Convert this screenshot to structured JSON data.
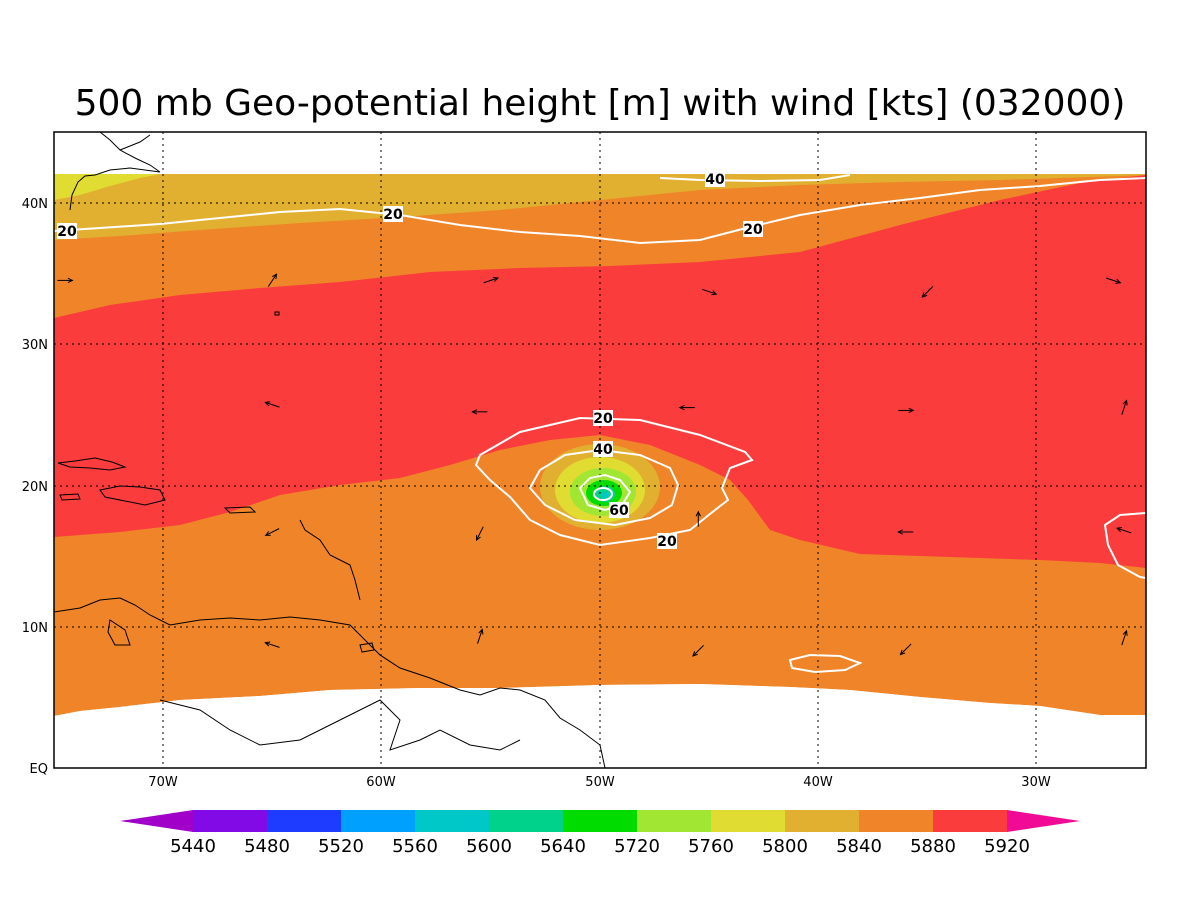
{
  "title": "500 mb Geo-potential height [m] with wind [kts] (032000)",
  "axes": {
    "lon_ticks": [
      "70W",
      "60W",
      "50W",
      "40W",
      "30W"
    ],
    "lat_ticks": [
      "EQ",
      "10N",
      "20N",
      "30N",
      "40N"
    ],
    "lon_range": [
      -75,
      -25
    ],
    "lat_range": [
      0,
      45
    ]
  },
  "colors": {
    "c5880": "#ef8429",
    "c5920": "#fa3c3c",
    "c5840": "#e2b030",
    "c5800": "#e1dc32",
    "c5760": "#a0e632",
    "c5720": "#00dc00",
    "c5640": "#00d28c",
    "c5600": "#00c8c8",
    "c5560": "#00a0ff",
    "c5520": "#1e3cff",
    "c5480": "#820ae6",
    "c5440": "#a000c8",
    "c_above": "#f00a96"
  },
  "contour_labels": [
    "20",
    "20",
    "40",
    "20",
    "40",
    "60",
    "20"
  ],
  "colorbar": {
    "labels": [
      "5440",
      "5480",
      "5520",
      "5560",
      "5600",
      "5640",
      "5720",
      "5760",
      "5800",
      "5840",
      "5880",
      "5920"
    ],
    "colors": [
      "#a000c8",
      "#820ae6",
      "#1e3cff",
      "#00a0ff",
      "#00c8c8",
      "#00d28c",
      "#00dc00",
      "#a0e632",
      "#e1dc32",
      "#e2b030",
      "#ef8429",
      "#fa3c3c",
      "#f00a96"
    ]
  },
  "wind_vectors": [
    {
      "lon": -74.5,
      "lat": 34.5,
      "u": 3,
      "v": 0
    },
    {
      "lon": -65,
      "lat": 34.5,
      "u": 2,
      "v": 3
    },
    {
      "lon": -55,
      "lat": 34.5,
      "u": 3,
      "v": 1
    },
    {
      "lon": -45,
      "lat": 33.7,
      "u": 3,
      "v": -1
    },
    {
      "lon": -35,
      "lat": 33.7,
      "u": -2,
      "v": -2
    },
    {
      "lon": -26.5,
      "lat": 34.5,
      "u": 3,
      "v": -1
    },
    {
      "lon": -65,
      "lat": 25.7,
      "u": -3,
      "v": 1
    },
    {
      "lon": -55.5,
      "lat": 25.2,
      "u": -3,
      "v": 0
    },
    {
      "lon": -46,
      "lat": 25.5,
      "u": -3,
      "v": 0
    },
    {
      "lon": -36,
      "lat": 25.3,
      "u": 3,
      "v": 0
    },
    {
      "lon": -26,
      "lat": 25.5,
      "u": 1,
      "v": 3
    },
    {
      "lon": -65,
      "lat": 16.7,
      "u": -2,
      "v": -1
    },
    {
      "lon": -55.5,
      "lat": 16.6,
      "u": -1,
      "v": -2
    },
    {
      "lon": -45.5,
      "lat": 17.6,
      "u": 0,
      "v": 3
    },
    {
      "lon": -36,
      "lat": 16.7,
      "u": -3,
      "v": 0
    },
    {
      "lon": -26,
      "lat": 16.8,
      "u": -3,
      "v": 1
    },
    {
      "lon": -65,
      "lat": 8.7,
      "u": -3,
      "v": 1
    },
    {
      "lon": -55.5,
      "lat": 9.3,
      "u": 1,
      "v": 3
    },
    {
      "lon": -45.5,
      "lat": 8.3,
      "u": -2,
      "v": -2
    },
    {
      "lon": -36,
      "lat": 8.4,
      "u": -2,
      "v": -2
    },
    {
      "lon": -26,
      "lat": 9.2,
      "u": 1,
      "v": 3
    }
  ]
}
